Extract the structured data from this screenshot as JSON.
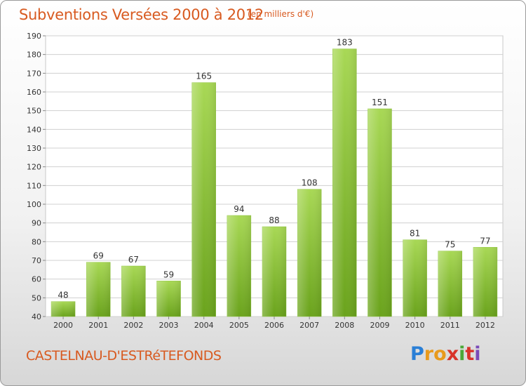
{
  "header": {
    "title": "Subventions Versées 2000 à 2012",
    "unit_note": "(en milliers d'€)"
  },
  "footer": {
    "commune": "CASTELNAU-D'ESTRéTEFONDS",
    "logo_text": "Proxiti"
  },
  "colors": {
    "title": "#d85a20",
    "bar_light": "#a8d855",
    "bar_dark": "#6aa31c",
    "grid": "#d0d0d0"
  },
  "chart_data": {
    "type": "bar",
    "title": "Subventions Versées 2000 à 2012",
    "subtitle": "(en milliers d'€)",
    "xlabel": "",
    "ylabel": "",
    "categories": [
      "2000",
      "2001",
      "2002",
      "2003",
      "2004",
      "2005",
      "2006",
      "2007",
      "2008",
      "2009",
      "2010",
      "2011",
      "2012"
    ],
    "values": [
      48,
      69,
      67,
      59,
      165,
      94,
      88,
      108,
      183,
      151,
      81,
      75,
      77
    ],
    "ylim": [
      40,
      190
    ],
    "yticks": [
      40,
      50,
      60,
      70,
      80,
      90,
      100,
      110,
      120,
      130,
      140,
      150,
      160,
      170,
      180,
      190
    ],
    "grid": true,
    "legend": "none"
  }
}
